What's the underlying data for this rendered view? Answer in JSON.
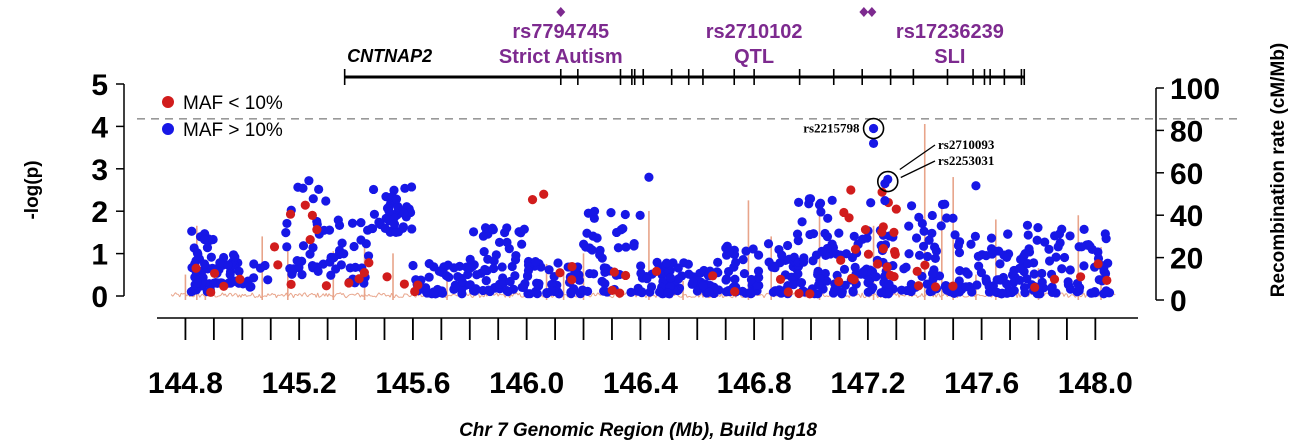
{
  "chart_data": {
    "type": "scatter",
    "xlabel": "Chr 7 Genomic Region (Mb), Build hg18",
    "ylabel": "-log(p)",
    "y2label": "Recombination rate (cM/Mb)",
    "xlim": [
      144.7,
      148.15
    ],
    "ylim": [
      0,
      5
    ],
    "y2lim": [
      0,
      100
    ],
    "x_ticks": [
      "144.8",
      "145.2",
      "145.6",
      "146.0",
      "146.4",
      "146.8",
      "147.2",
      "147.6",
      "148.0"
    ],
    "y_ticks": [
      "0",
      "1",
      "2",
      "3",
      "4",
      "5"
    ],
    "y2_ticks": [
      "0",
      "20",
      "40",
      "60",
      "80",
      "100"
    ],
    "threshold_line": 4.18,
    "gene": {
      "name": "CNTNAP2",
      "start": 145.36,
      "end": 147.75,
      "exons": [
        145.36,
        146.12,
        146.18,
        146.33,
        146.37,
        146.38,
        146.41,
        146.51,
        146.57,
        146.62,
        146.73,
        146.8,
        146.96,
        147.08,
        147.18,
        147.28,
        147.36,
        147.48,
        147.57,
        147.61,
        147.63,
        147.68,
        147.74,
        147.75
      ]
    },
    "snp_annotations": [
      {
        "name": "rs7794745",
        "label": "Strict Autism",
        "x": 146.12
      },
      {
        "name": "rs2710102",
        "label": "QTL",
        "x": 146.8
      },
      {
        "name": "rs17236239",
        "label": "SLI",
        "x": 147.2
      }
    ],
    "legend": {
      "placement": "top-left",
      "entries": [
        {
          "label": "MAF < 10%",
          "color": "#d11c1c"
        },
        {
          "label": "MAF > 10%",
          "color": "#1717e6"
        }
      ]
    },
    "point_labels": [
      {
        "name": "rs2215798",
        "x": 147.22,
        "y": 3.95
      },
      {
        "name": "rs2710093",
        "x": 147.27,
        "y": 2.7
      },
      {
        "name": "rs2253031",
        "x": 147.27,
        "y": 2.7
      }
    ],
    "recomb_color": "#e8a48a",
    "blue_clusters": [
      [
        144.82,
        144.9,
        0.1,
        1.6,
        36
      ],
      [
        144.9,
        145.0,
        0.3,
        1.1,
        30
      ],
      [
        145.0,
        145.1,
        0.2,
        0.8,
        10
      ],
      [
        145.15,
        145.3,
        0.5,
        2.8,
        30
      ],
      [
        145.3,
        145.45,
        0.3,
        1.8,
        28
      ],
      [
        145.45,
        145.6,
        1.5,
        2.65,
        40
      ],
      [
        145.6,
        145.8,
        0.05,
        0.8,
        45
      ],
      [
        145.8,
        146.0,
        0.1,
        1.7,
        55
      ],
      [
        146.0,
        146.2,
        0.05,
        0.9,
        45
      ],
      [
        146.2,
        146.4,
        0.05,
        2.0,
        40
      ],
      [
        146.4,
        146.7,
        0.05,
        0.8,
        75
      ],
      [
        146.7,
        146.95,
        0.05,
        1.3,
        70
      ],
      [
        146.95,
        147.1,
        0.05,
        2.4,
        55
      ],
      [
        147.1,
        147.3,
        0.05,
        1.6,
        60
      ],
      [
        147.3,
        147.5,
        0.1,
        2.2,
        45
      ],
      [
        147.5,
        147.75,
        0.05,
        1.5,
        65
      ],
      [
        147.75,
        148.05,
        0.05,
        1.7,
        75
      ]
    ],
    "red_clusters": [
      [
        144.82,
        145.0,
        0.05,
        0.7,
        5
      ],
      [
        145.1,
        145.3,
        0.2,
        2.3,
        9
      ],
      [
        145.3,
        145.45,
        0.2,
        1.2,
        4
      ],
      [
        145.5,
        145.7,
        0.1,
        0.5,
        4
      ],
      [
        146.0,
        146.2,
        0.1,
        2.4,
        4
      ],
      [
        146.3,
        146.5,
        0.05,
        0.6,
        5
      ],
      [
        146.6,
        147.0,
        0.05,
        0.5,
        6
      ],
      [
        147.08,
        147.3,
        0.3,
        2.4,
        20
      ],
      [
        147.3,
        147.5,
        0.2,
        1.3,
        5
      ],
      [
        147.7,
        148.05,
        0.1,
        1.0,
        5
      ]
    ],
    "highlight_points": [
      {
        "x": 147.22,
        "y": 3.95,
        "maf": "high"
      },
      {
        "x": 147.22,
        "y": 3.6,
        "maf": "high"
      },
      {
        "x": 147.27,
        "y": 2.75,
        "maf": "high"
      },
      {
        "x": 147.26,
        "y": 2.65,
        "maf": "high"
      },
      {
        "x": 147.14,
        "y": 2.5,
        "maf": "low"
      },
      {
        "x": 147.25,
        "y": 2.45,
        "maf": "low"
      },
      {
        "x": 147.3,
        "y": 2.05,
        "maf": "low"
      },
      {
        "x": 147.26,
        "y": 2.25,
        "maf": "high"
      },
      {
        "x": 147.21,
        "y": 2.2,
        "maf": "high"
      },
      {
        "x": 146.06,
        "y": 2.4,
        "maf": "low"
      },
      {
        "x": 146.43,
        "y": 2.8,
        "maf": "high"
      },
      {
        "x": 147.58,
        "y": 2.6,
        "maf": "high"
      }
    ],
    "recomb_spikes": [
      [
        144.8,
        12
      ],
      [
        144.84,
        35
      ],
      [
        144.87,
        18
      ],
      [
        145.07,
        30
      ],
      [
        145.16,
        24
      ],
      [
        145.32,
        23
      ],
      [
        145.43,
        28
      ],
      [
        145.53,
        22
      ],
      [
        145.72,
        15
      ],
      [
        146.07,
        17
      ],
      [
        146.13,
        13
      ],
      [
        146.2,
        22
      ],
      [
        146.43,
        42
      ],
      [
        146.55,
        9
      ],
      [
        146.78,
        47
      ],
      [
        146.86,
        30
      ],
      [
        147.03,
        41
      ],
      [
        147.22,
        35
      ],
      [
        147.4,
        83
      ],
      [
        147.46,
        45
      ],
      [
        147.5,
        58
      ],
      [
        147.58,
        12
      ],
      [
        147.65,
        38
      ],
      [
        147.8,
        15
      ],
      [
        147.94,
        40
      ],
      [
        148.02,
        25
      ]
    ]
  }
}
